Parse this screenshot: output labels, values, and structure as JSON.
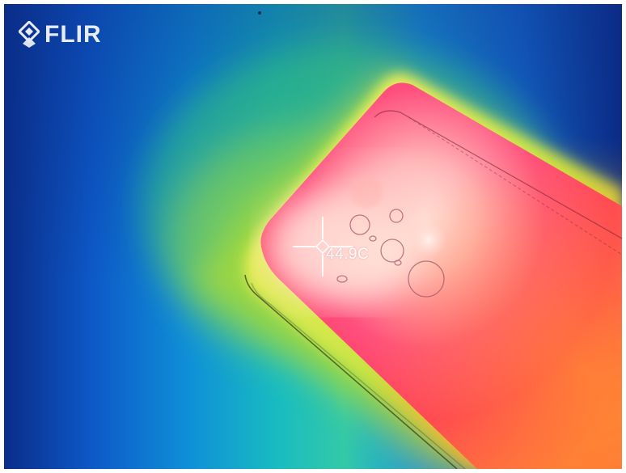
{
  "logo": {
    "text": "FLIR",
    "icon": "flir-diamond-logo-icon"
  },
  "measurement": {
    "spot_temperature": "44.9C",
    "icon": "crosshair-icon"
  },
  "colors": {
    "cold": "#0b2b87",
    "cool": "#0f74d6",
    "mid": "#18b7c9",
    "warm": "#7fd12c",
    "hot": "#f3e63c",
    "hotter": "#ff6a3a",
    "hottest": "#ff2f62",
    "peak": "#ffd8d1"
  }
}
